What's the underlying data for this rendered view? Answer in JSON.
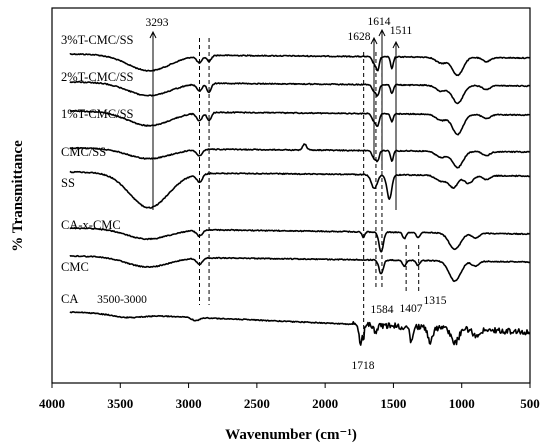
{
  "chart_data": {
    "type": "line",
    "xlabel": "Wavenumber (cm⁻¹)",
    "ylabel": "% Transmittance",
    "xlim": [
      4000,
      500
    ],
    "x_reversed": true,
    "xticks": [
      "4000",
      "3500",
      "3000",
      "2500",
      "2000",
      "1500",
      "1000",
      "500"
    ],
    "grid": false,
    "series": [
      {
        "name": "3%T-CMC/SS"
      },
      {
        "name": "2%T-CMC/SS"
      },
      {
        "name": "1%T-CMC/SS"
      },
      {
        "name": "CMC/SS"
      },
      {
        "name": "SS"
      },
      {
        "name": "CA-x-CMC"
      },
      {
        "name": "CMC"
      },
      {
        "name": "CA"
      }
    ],
    "dashed_markers_cm": [
      2920,
      2850,
      1718,
      1628,
      1584,
      1407,
      1315
    ],
    "annotations": [
      {
        "text": "3293",
        "x": 3293,
        "arrow": true
      },
      {
        "text": "1628",
        "x": 1640,
        "arrow": true
      },
      {
        "text": "1614",
        "x": 1614,
        "arrow": true
      },
      {
        "text": "1511",
        "x": 1511,
        "arrow": true
      },
      {
        "text": "3500-3000",
        "x": 3250
      },
      {
        "text": "1718",
        "x": 1718
      },
      {
        "text": "1584",
        "x": 1584
      },
      {
        "text": "1407",
        "x": 1407
      },
      {
        "text": "1315",
        "x": 1315
      }
    ]
  }
}
